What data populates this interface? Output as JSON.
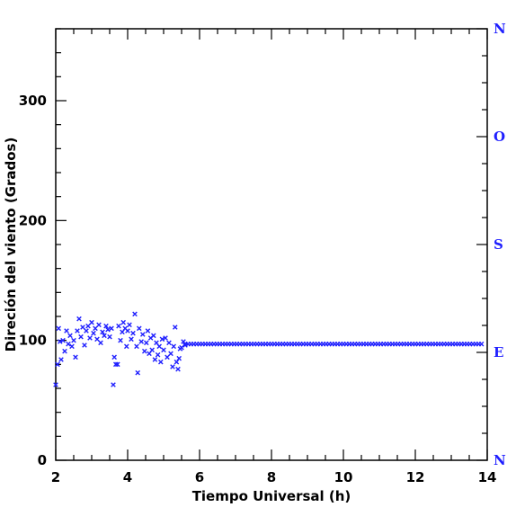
{
  "chart_data": {
    "type": "scatter",
    "xlabel": "Tiempo Universal (h)",
    "ylabel": "Direción del viento (Grados)",
    "xlim": [
      2,
      14
    ],
    "ylim": [
      0,
      360
    ],
    "x_ticks": [
      2,
      4,
      6,
      8,
      10,
      12,
      14
    ],
    "y_ticks": [
      0,
      100,
      200,
      300
    ],
    "right_axis_labels": [
      {
        "label": "N",
        "value": 0
      },
      {
        "label": "E",
        "value": 90
      },
      {
        "label": "S",
        "value": 180
      },
      {
        "label": "O",
        "value": 270
      },
      {
        "label": "N",
        "value": 360
      }
    ],
    "colors": {
      "points": "#1f1fff",
      "right_axis": "#1f1fff",
      "axes": "#000000"
    },
    "marker": "x",
    "scatter_points": [
      [
        2.0,
        63
      ],
      [
        2.05,
        80
      ],
      [
        2.08,
        110
      ],
      [
        2.12,
        99
      ],
      [
        2.15,
        84
      ],
      [
        2.2,
        100
      ],
      [
        2.25,
        91
      ],
      [
        2.3,
        108
      ],
      [
        2.35,
        97
      ],
      [
        2.4,
        104
      ],
      [
        2.45,
        95
      ],
      [
        2.5,
        100
      ],
      [
        2.55,
        86
      ],
      [
        2.6,
        108
      ],
      [
        2.65,
        118
      ],
      [
        2.7,
        103
      ],
      [
        2.75,
        111
      ],
      [
        2.8,
        96
      ],
      [
        2.85,
        108
      ],
      [
        2.9,
        112
      ],
      [
        2.95,
        102
      ],
      [
        3.0,
        115
      ],
      [
        3.05,
        106
      ],
      [
        3.1,
        110
      ],
      [
        3.15,
        101
      ],
      [
        3.2,
        113
      ],
      [
        3.25,
        98
      ],
      [
        3.3,
        107
      ],
      [
        3.35,
        104
      ],
      [
        3.4,
        112
      ],
      [
        3.45,
        109
      ],
      [
        3.5,
        103
      ],
      [
        3.55,
        110
      ],
      [
        3.6,
        63
      ],
      [
        3.63,
        86
      ],
      [
        3.67,
        80
      ],
      [
        3.72,
        80
      ],
      [
        3.75,
        112
      ],
      [
        3.8,
        100
      ],
      [
        3.85,
        107
      ],
      [
        3.88,
        115
      ],
      [
        3.93,
        110
      ],
      [
        3.97,
        95
      ],
      [
        4.0,
        108
      ],
      [
        4.05,
        113
      ],
      [
        4.1,
        101
      ],
      [
        4.15,
        106
      ],
      [
        4.2,
        122
      ],
      [
        4.25,
        95
      ],
      [
        4.28,
        73
      ],
      [
        4.32,
        110
      ],
      [
        4.38,
        99
      ],
      [
        4.42,
        105
      ],
      [
        4.47,
        91
      ],
      [
        4.52,
        98
      ],
      [
        4.56,
        108
      ],
      [
        4.6,
        89
      ],
      [
        4.64,
        102
      ],
      [
        4.68,
        92
      ],
      [
        4.72,
        104
      ],
      [
        4.76,
        84
      ],
      [
        4.8,
        98
      ],
      [
        4.84,
        88
      ],
      [
        4.88,
        95
      ],
      [
        4.92,
        82
      ],
      [
        4.96,
        101
      ],
      [
        5.0,
        92
      ],
      [
        5.05,
        102
      ],
      [
        5.1,
        86
      ],
      [
        5.15,
        98
      ],
      [
        5.2,
        89
      ],
      [
        5.25,
        78
      ],
      [
        5.28,
        95
      ],
      [
        5.32,
        111
      ],
      [
        5.36,
        82
      ],
      [
        5.4,
        76
      ],
      [
        5.43,
        85
      ],
      [
        5.46,
        93
      ],
      [
        5.5,
        94
      ],
      [
        5.55,
        99
      ],
      [
        5.6,
        96
      ]
    ],
    "flat_series": {
      "x_start": 5.6,
      "x_end": 13.85,
      "step": 0.08,
      "value": 97
    }
  }
}
